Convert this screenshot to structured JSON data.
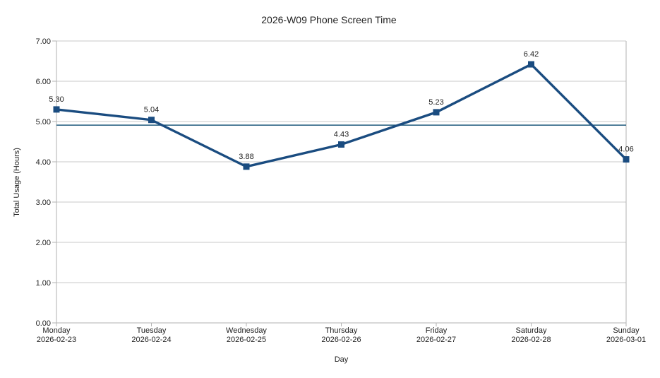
{
  "chart_data": {
    "type": "line",
    "title": "2026-W09 Phone Screen Time",
    "xlabel": "Day",
    "ylabel": "Total Usage (Hours)",
    "categories": [
      {
        "day": "Monday",
        "date": "2026-02-23"
      },
      {
        "day": "Tuesday",
        "date": "2026-02-24"
      },
      {
        "day": "Wednesday",
        "date": "2026-02-25"
      },
      {
        "day": "Thursday",
        "date": "2026-02-26"
      },
      {
        "day": "Friday",
        "date": "2026-02-27"
      },
      {
        "day": "Saturday",
        "date": "2026-02-28"
      },
      {
        "day": "Sunday",
        "date": "2026-03-01"
      }
    ],
    "series": [
      {
        "name": "Total Usage",
        "values": [
          5.3,
          5.04,
          3.88,
          4.43,
          5.23,
          6.42,
          4.06
        ],
        "data_labels": [
          "5.30",
          "5.04",
          "3.88",
          "4.43",
          "5.23",
          "6.42",
          "4.06"
        ]
      }
    ],
    "average_line": 4.91,
    "ylim": [
      0,
      7
    ],
    "yticks": [
      0,
      1,
      2,
      3,
      4,
      5,
      6,
      7
    ],
    "ytick_labels": [
      "0.00",
      "1.00",
      "2.00",
      "3.00",
      "4.00",
      "5.00",
      "6.00",
      "7.00"
    ],
    "grid": "horizontal",
    "legend": "none",
    "marker": "square",
    "colors": {
      "series": "#1a4c80",
      "average_line": "#1e5a7d",
      "gridline": "#c9c9c9",
      "axis": "#b2b2b2",
      "text": "#1e1e1e"
    }
  }
}
